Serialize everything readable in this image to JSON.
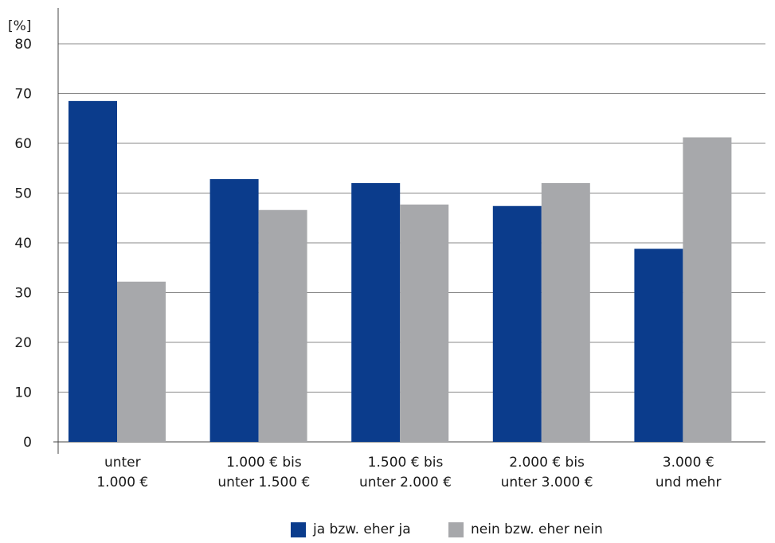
{
  "colors": {
    "series_ja": "#0b3c8c",
    "series_nein": "#a7a8ab",
    "grid": "#888888",
    "axis": "#444444"
  },
  "chart_data": {
    "type": "bar",
    "unit_label": "[%]",
    "categories": [
      [
        "unter",
        "1.000 €"
      ],
      [
        "1.000 € bis",
        "unter 1.500 €"
      ],
      [
        "1.500 € bis",
        "unter 2.000 €"
      ],
      [
        "2.000 € bis",
        "unter 3.000 €"
      ],
      [
        "3.000 €",
        "und mehr"
      ]
    ],
    "series": [
      {
        "name": "ja bzw. eher ja",
        "values": [
          68.5,
          52.8,
          52.0,
          47.4,
          38.8
        ]
      },
      {
        "name": "nein bzw. eher nein",
        "values": [
          32.2,
          46.6,
          47.7,
          52.0,
          61.2
        ]
      }
    ],
    "ylim": [
      0,
      80
    ],
    "yticks": [
      0,
      10,
      20,
      30,
      40,
      50,
      60,
      70,
      80
    ],
    "grid": true,
    "legend_position": "bottom-center"
  }
}
